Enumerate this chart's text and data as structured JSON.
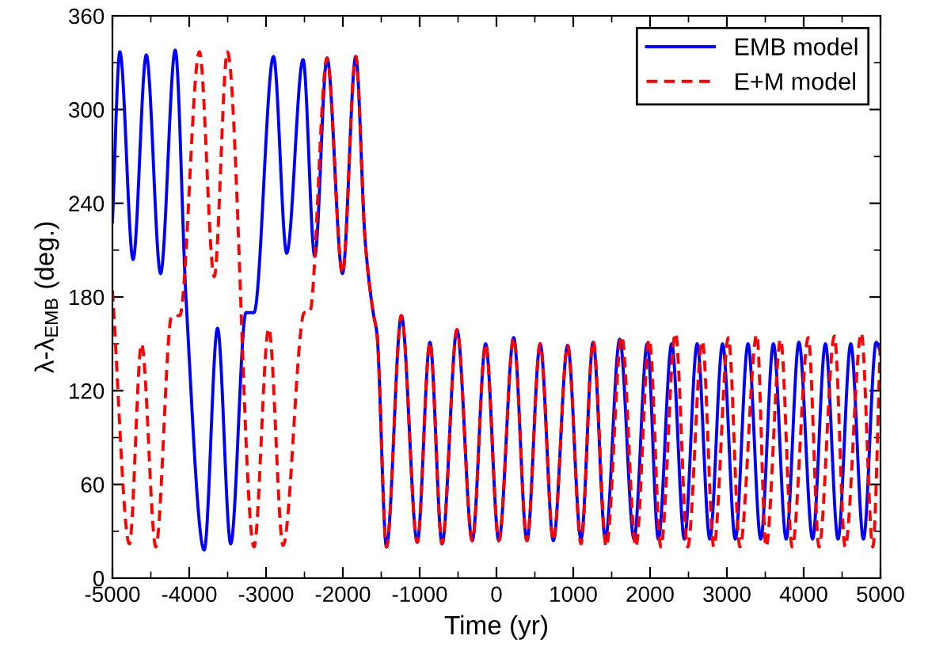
{
  "chart_data": {
    "type": "line",
    "xlabel": "Time (yr)",
    "ylabel": "λ-λ$_{EMB}$ (deg.)",
    "xlim": [
      -5000,
      5000
    ],
    "xticks": [
      -5000,
      -4000,
      -3000,
      -2000,
      -1000,
      0,
      1000,
      2000,
      3000,
      4000,
      5000
    ],
    "ylim": [
      0,
      360
    ],
    "yticks": [
      0,
      60,
      120,
      180,
      240,
      300,
      360
    ],
    "grid": false,
    "legend": "top right",
    "marker": "none",
    "series": [
      {
        "name": "EMB model",
        "color": "#0000ff",
        "line_style": "solid",
        "x": [
          -5000,
          -4903,
          -4731,
          -4559,
          -4373,
          -4182,
          -4043,
          -3805,
          -3632,
          -3460,
          -3261,
          -3157,
          -2903,
          -2731,
          -2518,
          -2366,
          -2206,
          -2005,
          -1832,
          -1708,
          -1605,
          -1557,
          -1432,
          -1238,
          -1031,
          -866,
          -708,
          -514,
          -315,
          -141,
          31,
          224,
          397,
          569,
          741,
          927,
          1101,
          1259,
          1418,
          1605,
          1791,
          1963,
          2108,
          2281,
          2447,
          2613,
          2778,
          2944,
          3110,
          3275,
          3441,
          3606,
          3772,
          3938,
          4116,
          4283,
          4447,
          4613,
          4778,
          4944,
          5000
        ],
        "values": [
          228,
          337,
          204,
          335,
          195,
          338,
          180,
          18,
          160,
          22,
          170,
          170,
          334,
          208,
          332,
          206,
          333,
          195,
          334,
          215,
          170,
          157,
          20,
          168,
          23,
          151,
          22,
          159,
          24,
          150,
          24,
          154,
          24,
          150,
          24,
          149,
          25,
          151,
          25,
          153,
          25,
          150,
          25,
          150,
          25,
          150,
          25,
          150,
          25,
          150,
          25,
          150,
          25,
          151,
          25,
          150,
          25,
          150,
          25,
          151,
          145
        ]
      },
      {
        "name": "E+M model",
        "color": "#ff0000",
        "line_style": "dashed",
        "x": [
          -5000,
          -4779,
          -4621,
          -4435,
          -4228,
          -4124,
          -3868,
          -3675,
          -3503,
          -3157,
          -2965,
          -2778,
          -2501,
          -2433,
          -2206,
          -2005,
          -1832,
          -1708,
          -1605,
          -1557,
          -1432,
          -1238,
          -1031,
          -866,
          -708,
          -514,
          -315,
          -141,
          31,
          224,
          397,
          569,
          741,
          927,
          1101,
          1259,
          1430,
          1630,
          1815,
          1990,
          2140,
          2330,
          2490,
          2680,
          2830,
          3020,
          3170,
          3390,
          3510,
          3700,
          3850,
          4060,
          4200,
          4400,
          4540,
          4750,
          4900,
          5000
        ],
        "values": [
          184,
          22,
          150,
          20,
          168,
          168,
          337,
          193,
          337,
          20,
          160,
          21,
          170,
          170,
          333,
          195,
          334,
          215,
          170,
          157,
          20,
          168,
          23,
          151,
          22,
          159,
          24,
          150,
          24,
          154,
          24,
          150,
          24,
          149,
          22,
          152,
          20,
          155,
          20,
          153,
          20,
          157,
          20,
          152,
          20,
          154,
          20,
          156,
          20,
          153,
          20,
          154,
          20,
          155,
          20,
          157,
          20,
          153
        ]
      }
    ]
  }
}
